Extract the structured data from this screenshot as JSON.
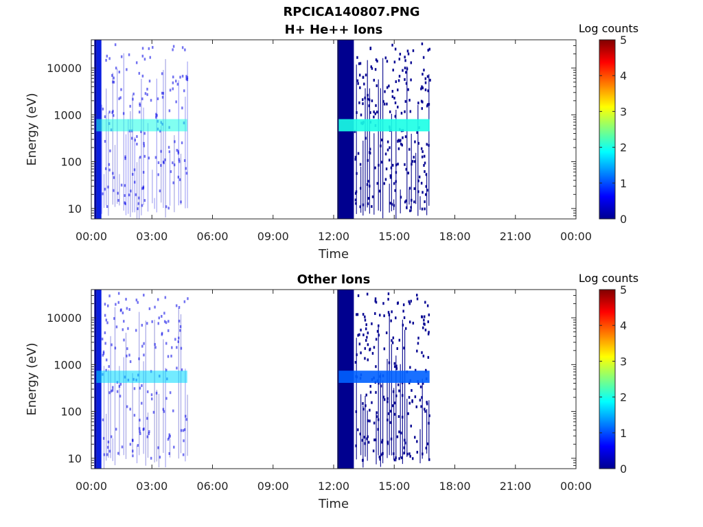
{
  "figure": {
    "title": "RPCICA140807.PNG"
  },
  "colorbar": {
    "label": "Log counts",
    "ticks": [
      "0",
      "1",
      "2",
      "3",
      "4",
      "5"
    ],
    "range": [
      0,
      5
    ],
    "colormap": "jet"
  },
  "chart_data": [
    {
      "type": "heatmap",
      "title": "H+ He++ Ions",
      "xlabel": "Time",
      "ylabel": "Energy (eV)",
      "yscale": "log",
      "x_ticks": [
        "00:00",
        "03:00",
        "06:00",
        "09:00",
        "12:00",
        "15:00",
        "18:00",
        "21:00",
        "00:00"
      ],
      "y_ticks": [
        "10",
        "100",
        "1000",
        "10000"
      ],
      "xlim_hours": [
        0,
        24
      ],
      "ylim_eV": [
        6,
        40000
      ],
      "colorbar_label": "Log counts",
      "clim": [
        0,
        5
      ],
      "intervals": [
        {
          "start": "00:15",
          "end": "04:45",
          "dense_stripe_end": "00:30",
          "band_center_eV": 600,
          "band_log_counts": 2.0,
          "background_log_counts": 0.4
        },
        {
          "start": "12:15",
          "end": "16:45",
          "dense_block_end": "13:00",
          "band_center_eV": 600,
          "band_log_counts": 2.0,
          "background_log_counts": 0.2
        }
      ]
    },
    {
      "type": "heatmap",
      "title": "Other Ions",
      "xlabel": "Time",
      "ylabel": "Energy (eV)",
      "yscale": "log",
      "x_ticks": [
        "00:00",
        "03:00",
        "06:00",
        "09:00",
        "12:00",
        "15:00",
        "18:00",
        "21:00",
        "00:00"
      ],
      "y_ticks": [
        "10",
        "100",
        "1000",
        "10000"
      ],
      "xlim_hours": [
        0,
        24
      ],
      "ylim_eV": [
        6,
        40000
      ],
      "colorbar_label": "Log counts",
      "clim": [
        0,
        5
      ],
      "intervals": [
        {
          "start": "00:15",
          "end": "04:45",
          "dense_stripe_end": "00:30",
          "band_center_eV": 550,
          "band_log_counts": 1.7,
          "background_log_counts": 0.3
        },
        {
          "start": "12:15",
          "end": "16:45",
          "dense_block_end": "13:00",
          "band_center_eV": 550,
          "band_log_counts": 1.1,
          "background_log_counts": 0.1
        }
      ]
    }
  ]
}
